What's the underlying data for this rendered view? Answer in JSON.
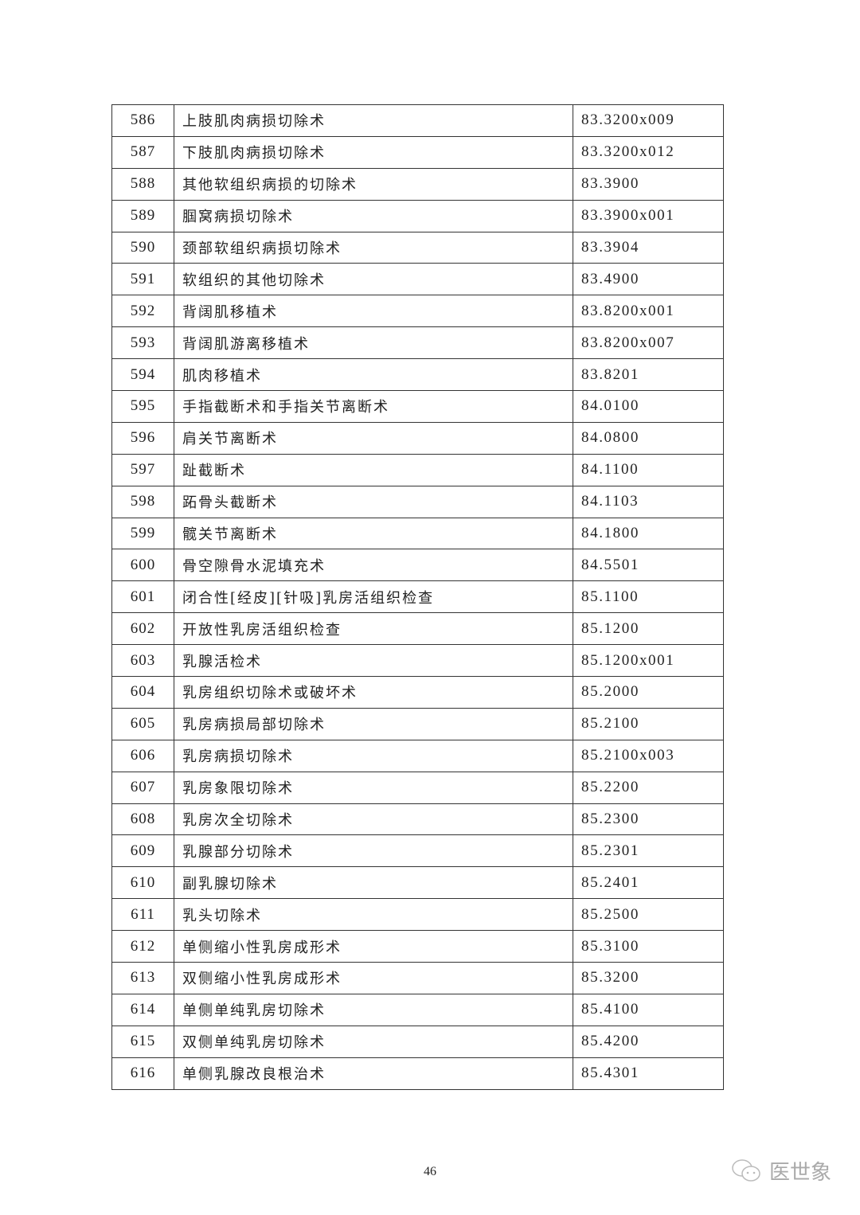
{
  "table": {
    "rows": [
      {
        "no": "586",
        "name": "上肢肌肉病损切除术",
        "code": "83.3200x009"
      },
      {
        "no": "587",
        "name": "下肢肌肉病损切除术",
        "code": "83.3200x012"
      },
      {
        "no": "588",
        "name": "其他软组织病损的切除术",
        "code": "83.3900"
      },
      {
        "no": "589",
        "name": "腘窝病损切除术",
        "code": "83.3900x001"
      },
      {
        "no": "590",
        "name": "颈部软组织病损切除术",
        "code": "83.3904"
      },
      {
        "no": "591",
        "name": "软组织的其他切除术",
        "code": "83.4900"
      },
      {
        "no": "592",
        "name": "背阔肌移植术",
        "code": "83.8200x001"
      },
      {
        "no": "593",
        "name": "背阔肌游离移植术",
        "code": "83.8200x007"
      },
      {
        "no": "594",
        "name": "肌肉移植术",
        "code": "83.8201"
      },
      {
        "no": "595",
        "name": "手指截断术和手指关节离断术",
        "code": "84.0100"
      },
      {
        "no": "596",
        "name": "肩关节离断术",
        "code": "84.0800"
      },
      {
        "no": "597",
        "name": "趾截断术",
        "code": "84.1100"
      },
      {
        "no": "598",
        "name": "跖骨头截断术",
        "code": "84.1103"
      },
      {
        "no": "599",
        "name": "髋关节离断术",
        "code": "84.1800"
      },
      {
        "no": "600",
        "name": "骨空隙骨水泥填充术",
        "code": "84.5501"
      },
      {
        "no": "601",
        "name": "闭合性[经皮][针吸]乳房活组织检查",
        "code": "85.1100"
      },
      {
        "no": "602",
        "name": "开放性乳房活组织检查",
        "code": "85.1200"
      },
      {
        "no": "603",
        "name": "乳腺活检术",
        "code": "85.1200x001"
      },
      {
        "no": "604",
        "name": "乳房组织切除术或破坏术",
        "code": "85.2000"
      },
      {
        "no": "605",
        "name": "乳房病损局部切除术",
        "code": "85.2100"
      },
      {
        "no": "606",
        "name": "乳房病损切除术",
        "code": "85.2100x003"
      },
      {
        "no": "607",
        "name": "乳房象限切除术",
        "code": "85.2200"
      },
      {
        "no": "608",
        "name": "乳房次全切除术",
        "code": "85.2300"
      },
      {
        "no": "609",
        "name": "乳腺部分切除术",
        "code": "85.2301"
      },
      {
        "no": "610",
        "name": "副乳腺切除术",
        "code": "85.2401"
      },
      {
        "no": "611",
        "name": "乳头切除术",
        "code": "85.2500"
      },
      {
        "no": "612",
        "name": "单侧缩小性乳房成形术",
        "code": "85.3100"
      },
      {
        "no": "613",
        "name": "双侧缩小性乳房成形术",
        "code": "85.3200"
      },
      {
        "no": "614",
        "name": "单侧单纯乳房切除术",
        "code": "85.4100"
      },
      {
        "no": "615",
        "name": "双侧单纯乳房切除术",
        "code": "85.4200"
      },
      {
        "no": "616",
        "name": "单侧乳腺改良根治术",
        "code": "85.4301"
      }
    ]
  },
  "footer": {
    "page_number": "46"
  },
  "watermark": {
    "text": "医世象",
    "icon": "wechat-icon"
  }
}
